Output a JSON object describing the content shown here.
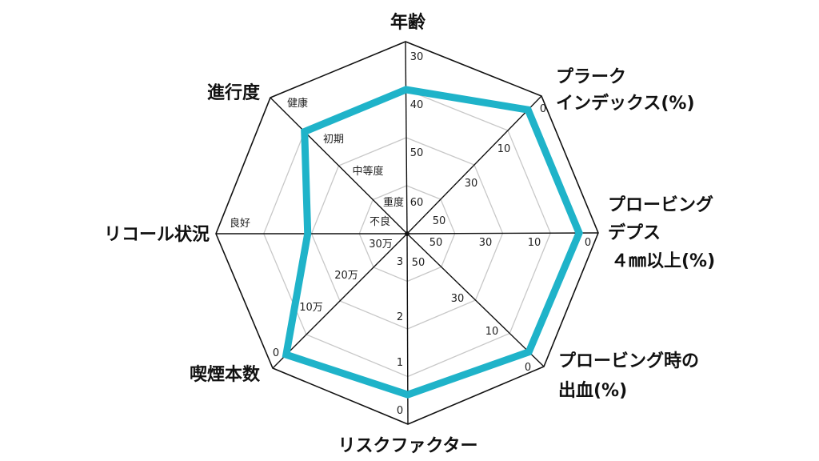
{
  "chart_data": {
    "type": "radar",
    "title": "",
    "grid": true,
    "series_color": "#1fb3c9",
    "axes": [
      {
        "label_lines": [
          "年齢"
        ],
        "ticks": [
          "30",
          "40",
          "50",
          "60"
        ],
        "value": 40
      },
      {
        "label_lines": [
          "プラーク",
          "インデックス(%)"
        ],
        "ticks": [
          "0",
          "10",
          "30",
          "50"
        ],
        "value": 4
      },
      {
        "label_lines": [
          "プロービング",
          "デプス",
          "４㎜以上(%)"
        ],
        "ticks": [
          "0",
          "10",
          "30",
          "50"
        ],
        "value": 4
      },
      {
        "label_lines": [
          "プロービング時の",
          "出血(%)"
        ],
        "ticks": [
          "0",
          "10",
          "30",
          "50"
        ],
        "value": 4
      },
      {
        "label_lines": [
          "リスクファクター"
        ],
        "ticks": [
          "0",
          "1",
          "2",
          "3"
        ],
        "value": 0.6
      },
      {
        "label_lines": [
          "喫煙本数"
        ],
        "ticks": [
          "0",
          "10万",
          "20万",
          "30万"
        ],
        "value": 40000
      },
      {
        "label_lines": [
          "リコール状況"
        ],
        "ticks": [
          "良好",
          "不良"
        ],
        "value": "良好と不良の中間"
      },
      {
        "label_lines": [
          "進行度"
        ],
        "ticks": [
          "健康",
          "初期",
          "中等度",
          "重度"
        ],
        "value": "初期"
      }
    ],
    "normalized_scores": [
      0.75,
      0.9,
      0.9,
      0.89,
      0.845,
      0.9,
      0.52,
      0.75
    ]
  }
}
